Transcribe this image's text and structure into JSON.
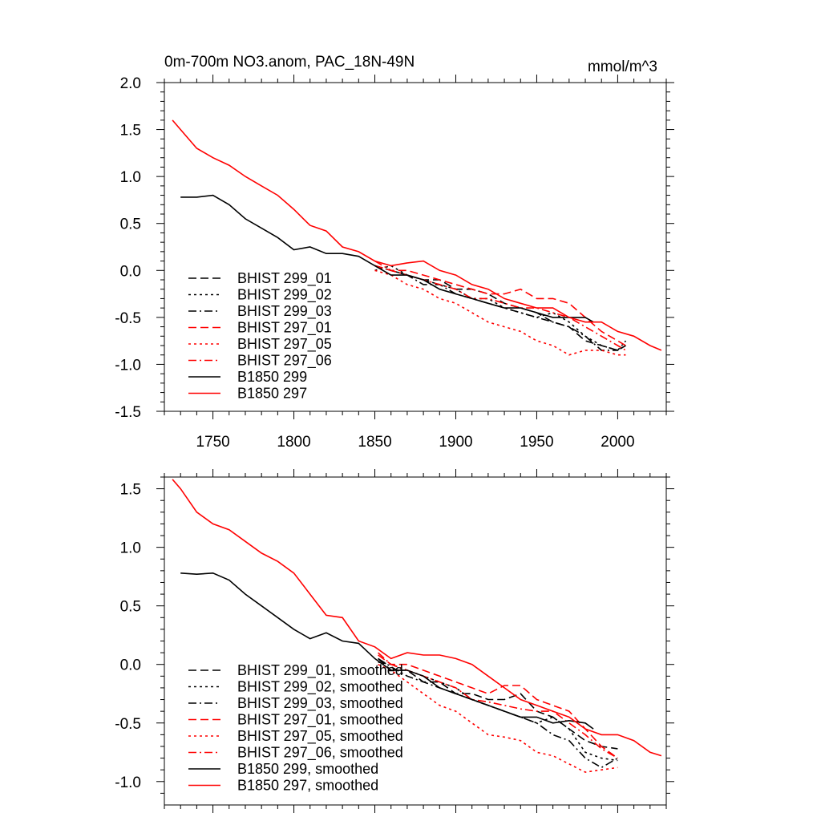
{
  "chart_data": [
    {
      "type": "line",
      "title": "0m-700m NO3.anom, PAC_18N-49N",
      "units": "mmol/m^3",
      "xlabel": "",
      "ylabel": "",
      "xlim": [
        1720,
        2030
      ],
      "ylim": [
        -1.5,
        2.0
      ],
      "x_ticks": [
        1750,
        1800,
        1850,
        1900,
        1950,
        2000
      ],
      "x_tick_labels": [
        "1750",
        "1800",
        "1850",
        "1900",
        "1950",
        "2000"
      ],
      "y_ticks": [
        -1.5,
        -1.0,
        -0.5,
        0.0,
        0.5,
        1.0,
        1.5,
        2.0
      ],
      "y_tick_labels": [
        "-1.5",
        "-1.0",
        "-0.5",
        "0.0",
        "0.5",
        "1.0",
        "1.5",
        "2.0"
      ],
      "legend_position": "bottom-left",
      "series": [
        {
          "name": "BHIST 299_01",
          "color": "#000000",
          "dash": "dashed",
          "x": [
            1850,
            1860,
            1870,
            1880,
            1890,
            1900,
            1910,
            1920,
            1930,
            1940,
            1950,
            1960,
            1970,
            1980,
            1990,
            2000,
            2005
          ],
          "y": [
            0.05,
            0.0,
            -0.05,
            -0.1,
            -0.1,
            -0.2,
            -0.2,
            -0.25,
            -0.35,
            -0.4,
            -0.45,
            -0.55,
            -0.6,
            -0.75,
            -0.8,
            -0.85,
            -0.8
          ]
        },
        {
          "name": "BHIST 299_02",
          "color": "#000000",
          "dash": "dotted",
          "x": [
            1850,
            1860,
            1870,
            1880,
            1890,
            1900,
            1910,
            1920,
            1930,
            1940,
            1950,
            1960,
            1970,
            1980,
            1990,
            2000,
            2005
          ],
          "y": [
            0.0,
            0.05,
            -0.05,
            -0.1,
            -0.15,
            -0.2,
            -0.3,
            -0.3,
            -0.4,
            -0.45,
            -0.5,
            -0.45,
            -0.55,
            -0.7,
            -0.8,
            -0.85,
            -0.8
          ]
        },
        {
          "name": "BHIST 299_03",
          "color": "#000000",
          "dash": "dashdot",
          "x": [
            1850,
            1860,
            1870,
            1880,
            1890,
            1900,
            1910,
            1920,
            1930,
            1940,
            1950,
            1960,
            1970,
            1980,
            1990,
            2000,
            2005
          ],
          "y": [
            0.05,
            0.0,
            -0.05,
            -0.15,
            -0.15,
            -0.25,
            -0.3,
            -0.35,
            -0.4,
            -0.45,
            -0.5,
            -0.55,
            -0.6,
            -0.7,
            -0.85,
            -0.85,
            -0.75
          ]
        },
        {
          "name": "BHIST 297_01",
          "color": "#ff0000",
          "dash": "dashed",
          "x": [
            1850,
            1860,
            1870,
            1880,
            1890,
            1900,
            1910,
            1920,
            1930,
            1940,
            1950,
            1960,
            1970,
            1980,
            1990,
            2000,
            2005
          ],
          "y": [
            0.05,
            0.0,
            0.0,
            -0.05,
            -0.1,
            -0.15,
            -0.2,
            -0.25,
            -0.25,
            -0.2,
            -0.3,
            -0.3,
            -0.35,
            -0.5,
            -0.65,
            -0.75,
            -0.8
          ]
        },
        {
          "name": "BHIST 297_05",
          "color": "#ff0000",
          "dash": "dotted",
          "x": [
            1850,
            1860,
            1870,
            1880,
            1890,
            1900,
            1910,
            1920,
            1930,
            1940,
            1950,
            1960,
            1970,
            1980,
            1990,
            2000,
            2005
          ],
          "y": [
            0.0,
            -0.05,
            -0.15,
            -0.2,
            -0.3,
            -0.35,
            -0.45,
            -0.55,
            -0.6,
            -0.65,
            -0.75,
            -0.8,
            -0.9,
            -0.85,
            -0.85,
            -0.9,
            -0.9
          ]
        },
        {
          "name": "BHIST 297_06",
          "color": "#ff0000",
          "dash": "dashdot",
          "x": [
            1850,
            1860,
            1870,
            1880,
            1890,
            1900,
            1910,
            1920,
            1930,
            1940,
            1950,
            1960,
            1970,
            1980,
            1990,
            2000,
            2005
          ],
          "y": [
            0.1,
            0.0,
            -0.05,
            -0.1,
            -0.15,
            -0.2,
            -0.3,
            -0.3,
            -0.35,
            -0.4,
            -0.4,
            -0.45,
            -0.5,
            -0.6,
            -0.7,
            -0.8,
            -0.85
          ]
        },
        {
          "name": "B1850 299",
          "color": "#000000",
          "dash": "solid",
          "x": [
            1730,
            1740,
            1750,
            1760,
            1770,
            1780,
            1790,
            1800,
            1810,
            1820,
            1830,
            1840,
            1850,
            1860,
            1870,
            1880,
            1890,
            1900,
            1910,
            1920,
            1930,
            1940,
            1950,
            1960,
            1970,
            1980,
            1985
          ],
          "y": [
            0.78,
            0.78,
            0.8,
            0.7,
            0.55,
            0.45,
            0.35,
            0.22,
            0.25,
            0.18,
            0.18,
            0.15,
            0.05,
            -0.05,
            -0.05,
            -0.1,
            -0.2,
            -0.25,
            -0.3,
            -0.35,
            -0.4,
            -0.4,
            -0.45,
            -0.5,
            -0.5,
            -0.5,
            -0.55
          ]
        },
        {
          "name": "B1850 297",
          "color": "#ff0000",
          "dash": "solid",
          "x": [
            1725,
            1730,
            1740,
            1750,
            1760,
            1770,
            1780,
            1790,
            1800,
            1810,
            1820,
            1830,
            1840,
            1850,
            1860,
            1870,
            1880,
            1890,
            1900,
            1910,
            1920,
            1930,
            1940,
            1950,
            1960,
            1970,
            1980,
            1990,
            2000,
            2010,
            2020,
            2027
          ],
          "y": [
            1.6,
            1.5,
            1.3,
            1.2,
            1.12,
            1.0,
            0.9,
            0.8,
            0.65,
            0.48,
            0.42,
            0.25,
            0.2,
            0.1,
            0.05,
            0.08,
            0.1,
            0.0,
            -0.05,
            -0.15,
            -0.2,
            -0.3,
            -0.35,
            -0.4,
            -0.4,
            -0.5,
            -0.55,
            -0.55,
            -0.65,
            -0.7,
            -0.8,
            -0.85
          ]
        }
      ]
    },
    {
      "type": "line",
      "title": "",
      "xlabel": "",
      "ylabel": "",
      "xlim": [
        1720,
        2030
      ],
      "ylim": [
        -1.2,
        1.6
      ],
      "x_ticks": [
        1750,
        1800,
        1850,
        1900,
        1950,
        2000
      ],
      "x_tick_labels": [],
      "y_ticks": [
        -1.0,
        -0.5,
        0.0,
        0.5,
        1.0,
        1.5
      ],
      "y_tick_labels": [
        "-1.0",
        "-0.5",
        "0.0",
        "0.5",
        "1.0",
        "1.5"
      ],
      "legend_position": "bottom-left",
      "series": [
        {
          "name": "BHIST 299_01, smoothed",
          "color": "#000000",
          "dash": "dashed",
          "x": [
            1852,
            1860,
            1870,
            1880,
            1890,
            1900,
            1910,
            1920,
            1930,
            1940,
            1950,
            1960,
            1970,
            1980,
            1990,
            2000
          ],
          "y": [
            0.05,
            -0.05,
            -0.05,
            -0.15,
            -0.15,
            -0.25,
            -0.25,
            -0.3,
            -0.3,
            -0.25,
            -0.4,
            -0.45,
            -0.55,
            -0.65,
            -0.7,
            -0.72
          ]
        },
        {
          "name": "BHIST 299_02, smoothed",
          "color": "#000000",
          "dash": "dotted",
          "x": [
            1852,
            1860,
            1870,
            1880,
            1890,
            1900,
            1910,
            1920,
            1930,
            1940,
            1950,
            1960,
            1970,
            1980,
            1990,
            2000
          ],
          "y": [
            0.02,
            0.0,
            -0.05,
            -0.1,
            -0.15,
            -0.2,
            -0.3,
            -0.35,
            -0.4,
            -0.45,
            -0.5,
            -0.45,
            -0.55,
            -0.75,
            -0.8,
            -0.82
          ]
        },
        {
          "name": "BHIST 299_03, smoothed",
          "color": "#000000",
          "dash": "dashdot",
          "x": [
            1852,
            1860,
            1870,
            1880,
            1890,
            1900,
            1910,
            1920,
            1930,
            1940,
            1950,
            1960,
            1970,
            1980,
            1990,
            2000
          ],
          "y": [
            0.05,
            -0.02,
            -0.1,
            -0.15,
            -0.2,
            -0.25,
            -0.3,
            -0.35,
            -0.4,
            -0.45,
            -0.5,
            -0.6,
            -0.65,
            -0.8,
            -0.88,
            -0.8
          ]
        },
        {
          "name": "BHIST 297_01, smoothed",
          "color": "#ff0000",
          "dash": "dashed",
          "x": [
            1852,
            1860,
            1870,
            1880,
            1890,
            1900,
            1910,
            1920,
            1930,
            1940,
            1950,
            1960,
            1970,
            1980,
            1990,
            2000
          ],
          "y": [
            0.08,
            0.0,
            0.0,
            -0.05,
            -0.1,
            -0.15,
            -0.2,
            -0.25,
            -0.18,
            -0.18,
            -0.3,
            -0.35,
            -0.4,
            -0.55,
            -0.7,
            -0.8
          ]
        },
        {
          "name": "BHIST 297_05, smoothed",
          "color": "#ff0000",
          "dash": "dotted",
          "x": [
            1852,
            1860,
            1870,
            1880,
            1890,
            1900,
            1910,
            1920,
            1930,
            1940,
            1950,
            1960,
            1970,
            1980,
            1990,
            2000
          ],
          "y": [
            0.0,
            -0.05,
            -0.15,
            -0.25,
            -0.35,
            -0.4,
            -0.5,
            -0.6,
            -0.62,
            -0.65,
            -0.75,
            -0.78,
            -0.85,
            -0.92,
            -0.9,
            -0.88
          ]
        },
        {
          "name": "BHIST 297_06, smoothed",
          "color": "#ff0000",
          "dash": "dashdot",
          "x": [
            1852,
            1860,
            1870,
            1880,
            1890,
            1900,
            1910,
            1920,
            1930,
            1940,
            1950,
            1960,
            1970,
            1980,
            1990,
            2000
          ],
          "y": [
            0.1,
            0.0,
            -0.05,
            -0.1,
            -0.15,
            -0.2,
            -0.3,
            -0.32,
            -0.35,
            -0.38,
            -0.4,
            -0.4,
            -0.5,
            -0.6,
            -0.72,
            -0.8
          ]
        },
        {
          "name": "B1850 299, smoothed",
          "color": "#000000",
          "dash": "solid",
          "x": [
            1730,
            1740,
            1750,
            1760,
            1770,
            1780,
            1790,
            1800,
            1810,
            1820,
            1830,
            1840,
            1850,
            1860,
            1870,
            1880,
            1890,
            1900,
            1910,
            1920,
            1930,
            1940,
            1950,
            1960,
            1970,
            1980,
            1985
          ],
          "y": [
            0.78,
            0.77,
            0.78,
            0.72,
            0.6,
            0.5,
            0.4,
            0.3,
            0.22,
            0.27,
            0.2,
            0.18,
            0.05,
            -0.05,
            -0.05,
            -0.1,
            -0.2,
            -0.25,
            -0.3,
            -0.35,
            -0.4,
            -0.45,
            -0.45,
            -0.5,
            -0.48,
            -0.5,
            -0.55
          ]
        },
        {
          "name": "B1850 297, smoothed",
          "color": "#ff0000",
          "dash": "solid",
          "x": [
            1725,
            1730,
            1740,
            1750,
            1760,
            1770,
            1780,
            1790,
            1800,
            1810,
            1820,
            1830,
            1840,
            1850,
            1860,
            1870,
            1880,
            1890,
            1900,
            1910,
            1920,
            1930,
            1940,
            1950,
            1960,
            1970,
            1980,
            1990,
            2000,
            2010,
            2020,
            2027
          ],
          "y": [
            1.58,
            1.5,
            1.3,
            1.2,
            1.15,
            1.05,
            0.95,
            0.88,
            0.78,
            0.6,
            0.42,
            0.4,
            0.2,
            0.15,
            0.05,
            0.1,
            0.08,
            0.08,
            0.05,
            0.0,
            -0.1,
            -0.2,
            -0.3,
            -0.35,
            -0.4,
            -0.45,
            -0.55,
            -0.6,
            -0.6,
            -0.65,
            -0.75,
            -0.78
          ]
        }
      ]
    }
  ]
}
